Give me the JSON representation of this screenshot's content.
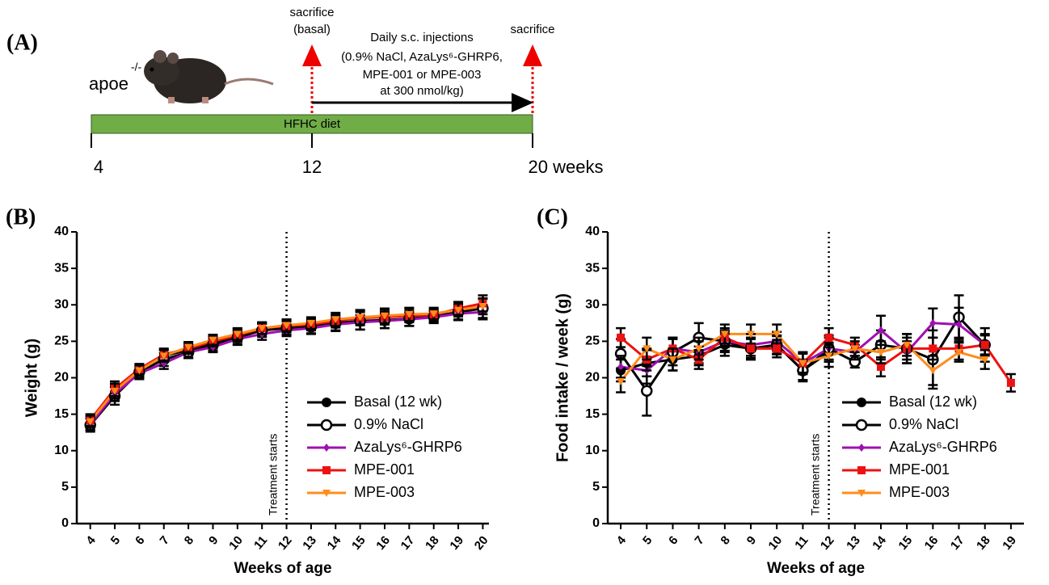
{
  "diagram": {
    "panel_label": "(A)",
    "strain": "apoe",
    "strain_sup": "-/-",
    "sacrifice_basal": [
      "sacrifice",
      "(basal)"
    ],
    "injections": [
      "Daily s.c. injections",
      "(0.9% NaCl, AzaLys⁶-GHRP6,",
      "MPE-001 or MPE-003",
      "at 300 nmol/kg)"
    ],
    "sacrifice_end": "sacrifice",
    "diet": "HFHC diet",
    "timeline_labels": [
      "4",
      "12",
      "20 weeks"
    ]
  },
  "chart_data": [
    {
      "type": "line",
      "panel_label": "(B)",
      "ylabel": "Weight (g)",
      "xlabel": "Weeks of age",
      "x": [
        4,
        5,
        6,
        7,
        8,
        9,
        10,
        11,
        12,
        13,
        14,
        15,
        16,
        17,
        18,
        19,
        20
      ],
      "xlim": [
        3.45,
        20.25
      ],
      "ylim": [
        0,
        40
      ],
      "yticks": [
        0,
        5,
        10,
        15,
        20,
        25,
        30,
        35,
        40
      ],
      "xticks": [
        4,
        5,
        6,
        7,
        8,
        9,
        10,
        11,
        12,
        13,
        14,
        15,
        16,
        17,
        18,
        19,
        20
      ],
      "annotation": {
        "text": "Treatment starts",
        "x": 12
      },
      "legend": "lower right",
      "series": [
        {
          "name": "Basal (12 wk)",
          "color": "#000000",
          "marker": "circle",
          "values": [
            13.8,
            18,
            21,
            23,
            23.8,
            24.8,
            25.8,
            26.6,
            27.0,
            null,
            null,
            null,
            null,
            null,
            null,
            null,
            null
          ],
          "errors": [
            0.9,
            1.1,
            0.8,
            0.8,
            0.8,
            0.8,
            0.9,
            0.8,
            0.8,
            null,
            null,
            null,
            null,
            null,
            null,
            null,
            null
          ]
        },
        {
          "name": "0.9% NaCl",
          "color": "#000000",
          "marker": "open-circle",
          "values": [
            13.5,
            17.5,
            20.8,
            22.5,
            23.5,
            24.5,
            25.5,
            26.5,
            26.8,
            27,
            27.5,
            27.8,
            27.9,
            28.1,
            28.4,
            29,
            29.5
          ],
          "errors": [
            0.9,
            1.2,
            0.8,
            0.9,
            0.8,
            0.8,
            0.9,
            0.9,
            0.9,
            0.9,
            1,
            1.2,
            1.1,
            1,
            0.8,
            1,
            1.3
          ]
        },
        {
          "name": "AzaLys⁶-GHRP6",
          "color": "#a010b0",
          "marker": "diamond",
          "values": [
            13.6,
            17.8,
            20.6,
            22,
            23.5,
            24.2,
            25.3,
            26,
            26.5,
            26.8,
            27.3,
            27.6,
            27.8,
            28,
            28.3,
            28.8,
            29
          ],
          "errors": [
            0.8,
            1,
            0.8,
            0.8,
            0.8,
            0.7,
            0.8,
            0.8,
            0.8,
            0.8,
            0.9,
            1,
            1,
            0.9,
            0.8,
            0.9,
            1
          ]
        },
        {
          "name": "MPE-001",
          "color": "#ee1111",
          "marker": "square",
          "values": [
            14.2,
            18.5,
            21.2,
            23.2,
            24,
            25,
            25.8,
            26.8,
            27.1,
            27.3,
            27.8,
            28.2,
            28.3,
            28.5,
            28.6,
            29.5,
            30.2
          ],
          "errors": [
            0.8,
            1,
            0.7,
            0.8,
            0.7,
            0.7,
            0.8,
            0.8,
            0.8,
            0.8,
            0.9,
            1,
            1,
            0.9,
            0.8,
            0.9,
            1.1
          ]
        },
        {
          "name": "MPE-003",
          "color": "#ff8c1a",
          "marker": "triangle-down",
          "values": [
            14,
            18.2,
            21,
            23,
            24.2,
            25.2,
            26,
            26.8,
            27.2,
            27.5,
            28,
            28.3,
            28.5,
            28.7,
            28.8,
            29.3,
            29.8
          ],
          "errors": [
            0.8,
            1,
            0.7,
            0.8,
            0.7,
            0.7,
            0.8,
            0.8,
            0.8,
            0.8,
            0.9,
            1,
            1,
            0.9,
            0.8,
            0.9,
            1.1
          ]
        }
      ]
    },
    {
      "type": "line",
      "panel_label": "(C)",
      "ylabel": "Food intake / week (g)",
      "xlabel": "Weeks of age",
      "x": [
        4,
        5,
        6,
        7,
        8,
        9,
        10,
        11,
        12,
        13,
        14,
        15,
        16,
        17,
        18,
        19
      ],
      "xlim": [
        3.5,
        19.5
      ],
      "ylim": [
        0,
        40
      ],
      "yticks": [
        0,
        5,
        10,
        15,
        20,
        25,
        30,
        35,
        40
      ],
      "xticks": [
        4,
        5,
        6,
        7,
        8,
        9,
        10,
        11,
        12,
        13,
        14,
        15,
        16,
        17,
        18,
        19
      ],
      "annotation": {
        "text": "Treatment starts",
        "x": 12
      },
      "legend": "lower right",
      "series": [
        {
          "name": "Basal (12 wk)",
          "color": "#000000",
          "marker": "circle",
          "values": [
            21,
            22,
            22.5,
            23,
            24.5,
            24,
            24.5,
            21,
            23.5,
            null,
            null,
            null,
            null,
            null,
            null,
            null
          ],
          "errors": [
            1.5,
            1.8,
            1.5,
            1.3,
            1.5,
            1.5,
            1.2,
            1.3,
            1.3,
            null,
            null,
            null,
            null,
            null,
            null,
            null
          ]
        },
        {
          "name": "0.9% NaCl",
          "color": "#000000",
          "marker": "open-circle",
          "values": [
            23.3,
            18.2,
            23.5,
            25.5,
            25,
            24,
            24.5,
            21,
            24,
            22.2,
            24.5,
            24,
            22.5,
            28.3,
            24.5,
            null
          ],
          "errors": [
            2,
            3.4,
            1.8,
            2,
            1.5,
            1.5,
            1.3,
            1.5,
            1.8,
            0.8,
            2,
            2,
            4,
            3,
            2.3,
            null
          ]
        },
        {
          "name": "AzaLys⁶-GHRP6",
          "color": "#a010b0",
          "marker": "diamond",
          "values": [
            21.5,
            21,
            24,
            23.5,
            25,
            24.5,
            25,
            22,
            24,
            23.5,
            26.5,
            23.5,
            27.5,
            27.3,
            24.5,
            null
          ],
          "errors": [
            1.5,
            1.8,
            1.5,
            1.5,
            1.3,
            1.5,
            1.3,
            1.5,
            1.5,
            1,
            2,
            1.5,
            2,
            2.3,
            1.5,
            null
          ]
        },
        {
          "name": "MPE-001",
          "color": "#ee1111",
          "marker": "square",
          "values": [
            25.5,
            22.5,
            24,
            22.5,
            25.5,
            24,
            24,
            22,
            25.5,
            24.5,
            21.5,
            24,
            24,
            24,
            24.5,
            19.3
          ],
          "errors": [
            1.3,
            1.5,
            1.5,
            1.3,
            1.3,
            1.3,
            1.2,
            1.3,
            1.3,
            1,
            1.3,
            1.5,
            1.5,
            1.5,
            1.3,
            1.2
          ]
        },
        {
          "name": "MPE-003",
          "color": "#ff8c1a",
          "marker": "triangle-down",
          "values": [
            19.5,
            24,
            22.5,
            24,
            26,
            26,
            26,
            22,
            23,
            24,
            23.5,
            24.5,
            21,
            23.5,
            22.5,
            null
          ],
          "errors": [
            1.5,
            1.5,
            1.5,
            1.5,
            1.3,
            1.3,
            1.3,
            1.5,
            1.5,
            1,
            1.5,
            1.5,
            2,
            1.3,
            1.3,
            null
          ]
        }
      ]
    }
  ]
}
